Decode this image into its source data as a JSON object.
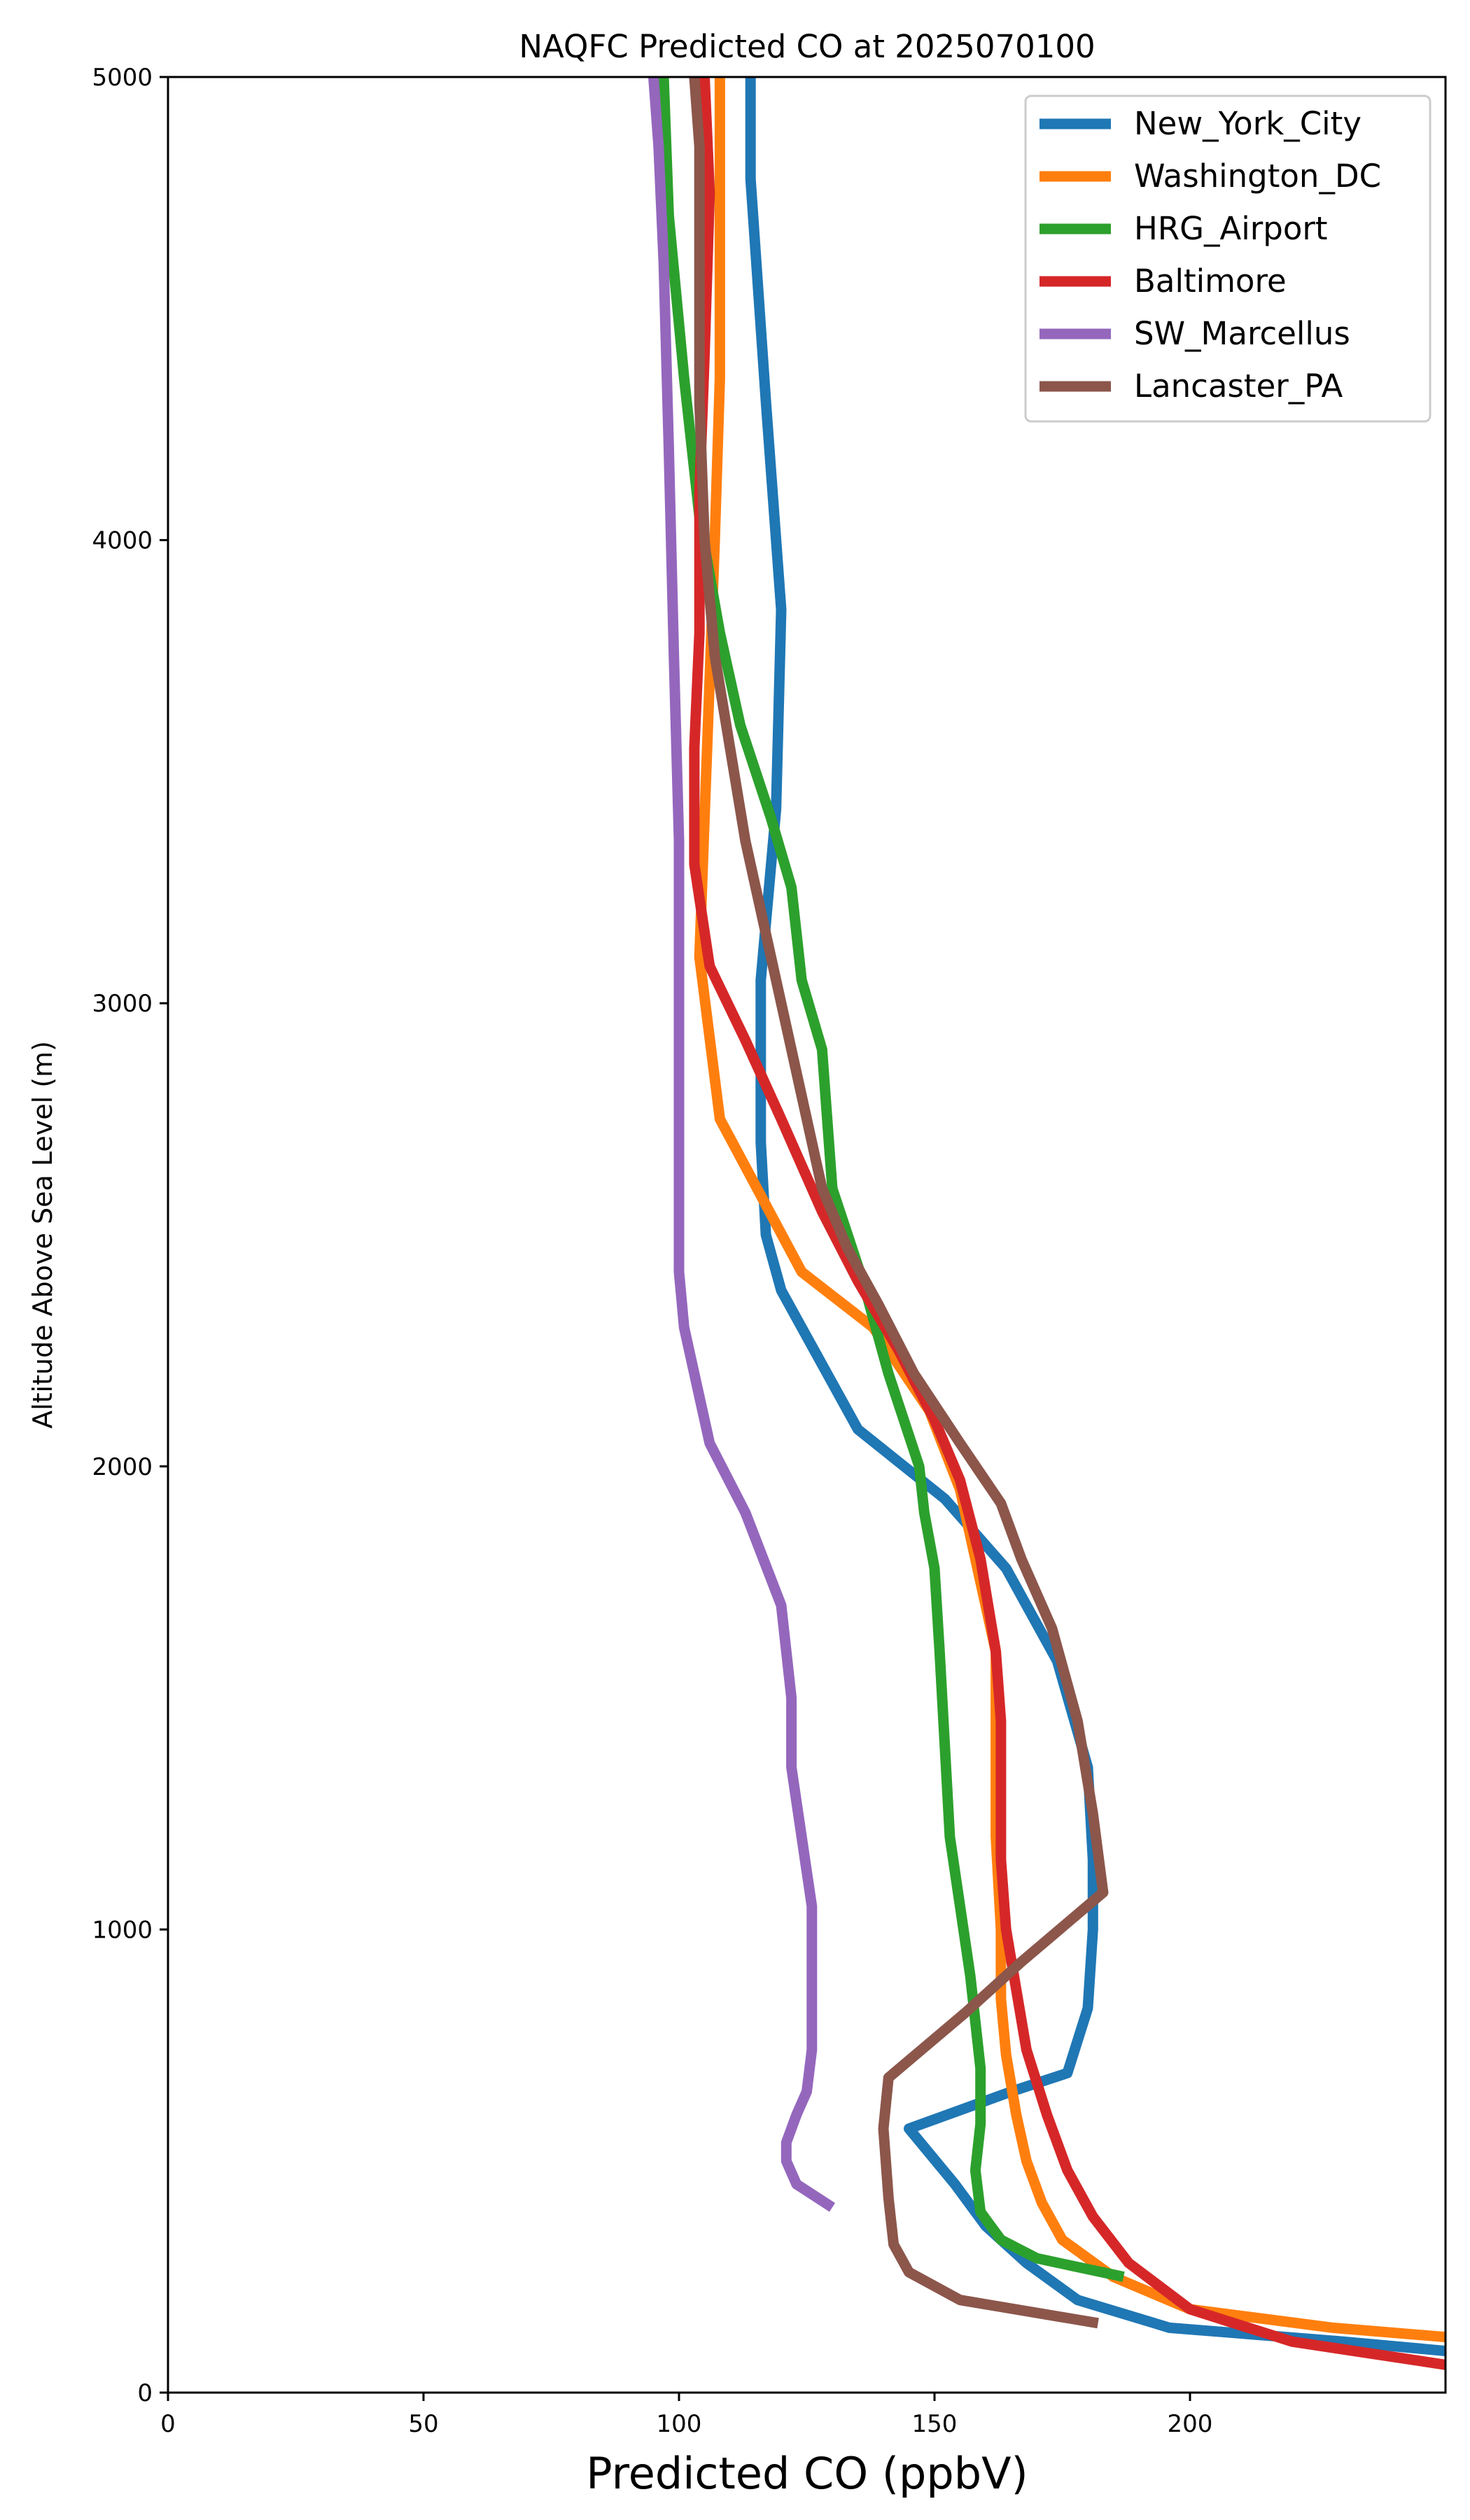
{
  "chart_data": {
    "type": "line",
    "title": "NAQFC Predicted CO at 2025070100",
    "xlabel": "Predicted CO (ppbV)",
    "ylabel": "Altitude Above Sea Level (m)",
    "xlim": [
      0,
      250
    ],
    "ylim": [
      0,
      5000
    ],
    "xticks": [
      0,
      50,
      100,
      150,
      200
    ],
    "yticks": [
      0,
      1000,
      2000,
      3000,
      4000,
      5000
    ],
    "grid": false,
    "legend_position": "top-right",
    "series": [
      {
        "name": "New_York_City",
        "color": "#1f77b4",
        "points": [
          [
            250,
            90
          ],
          [
            230,
            110
          ],
          [
            196,
            140
          ],
          [
            178,
            200
          ],
          [
            168,
            280
          ],
          [
            160,
            360
          ],
          [
            154,
            450
          ],
          [
            145,
            570
          ],
          [
            165,
            650
          ],
          [
            176,
            690
          ],
          [
            180,
            830
          ],
          [
            181,
            1000
          ],
          [
            181,
            1150
          ],
          [
            180,
            1350
          ],
          [
            174,
            1580
          ],
          [
            164,
            1780
          ],
          [
            152,
            1930
          ],
          [
            135,
            2080
          ],
          [
            120,
            2380
          ],
          [
            117,
            2500
          ],
          [
            116,
            2700
          ],
          [
            116,
            3050
          ],
          [
            119,
            3420
          ],
          [
            120,
            3850
          ],
          [
            117,
            4300
          ],
          [
            114,
            4780
          ],
          [
            114,
            5000
          ]
        ]
      },
      {
        "name": "Washington_DC",
        "color": "#ff7f0e",
        "points": [
          [
            250,
            120
          ],
          [
            228,
            140
          ],
          [
            200,
            180
          ],
          [
            185,
            250
          ],
          [
            175,
            330
          ],
          [
            171,
            410
          ],
          [
            168,
            500
          ],
          [
            166,
            600
          ],
          [
            164,
            730
          ],
          [
            163,
            850
          ],
          [
            163,
            1000
          ],
          [
            162,
            1200
          ],
          [
            162,
            1400
          ],
          [
            162,
            1600
          ],
          [
            159,
            1750
          ],
          [
            155,
            1950
          ],
          [
            149,
            2120
          ],
          [
            138,
            2300
          ],
          [
            124,
            2420
          ],
          [
            108,
            2750
          ],
          [
            104,
            3100
          ],
          [
            105,
            3400
          ],
          [
            106,
            3700
          ],
          [
            107,
            4000
          ],
          [
            108,
            4350
          ],
          [
            108,
            4700
          ],
          [
            108,
            5000
          ]
        ]
      },
      {
        "name": "HRG_Airport",
        "color": "#2ca02c",
        "points": [
          [
            187,
            250
          ],
          [
            170,
            290
          ],
          [
            163,
            330
          ],
          [
            159,
            390
          ],
          [
            158,
            480
          ],
          [
            159,
            580
          ],
          [
            159,
            700
          ],
          [
            157,
            900
          ],
          [
            155,
            1050
          ],
          [
            153,
            1200
          ],
          [
            152,
            1400
          ],
          [
            151,
            1600
          ],
          [
            150,
            1780
          ],
          [
            148,
            1900
          ],
          [
            147,
            2000
          ],
          [
            141,
            2200
          ],
          [
            136,
            2400
          ],
          [
            130,
            2600
          ],
          [
            129,
            2750
          ],
          [
            128,
            2900
          ],
          [
            124,
            3050
          ],
          [
            122,
            3250
          ],
          [
            118,
            3400
          ],
          [
            112,
            3600
          ],
          [
            108,
            3800
          ],
          [
            104,
            4050
          ],
          [
            101,
            4350
          ],
          [
            98,
            4700
          ],
          [
            97,
            5000
          ]
        ]
      },
      {
        "name": "Baltimore",
        "color": "#d62728",
        "points": [
          [
            250,
            60
          ],
          [
            220,
            110
          ],
          [
            200,
            180
          ],
          [
            188,
            280
          ],
          [
            181,
            380
          ],
          [
            176,
            480
          ],
          [
            172,
            600
          ],
          [
            168,
            740
          ],
          [
            166,
            870
          ],
          [
            164,
            1000
          ],
          [
            163,
            1150
          ],
          [
            163,
            1300
          ],
          [
            163,
            1450
          ],
          [
            162,
            1600
          ],
          [
            159,
            1800
          ],
          [
            155,
            1970
          ],
          [
            150,
            2100
          ],
          [
            143,
            2250
          ],
          [
            135,
            2400
          ],
          [
            128,
            2550
          ],
          [
            120,
            2750
          ],
          [
            113,
            2920
          ],
          [
            106,
            3080
          ],
          [
            103,
            3300
          ],
          [
            103,
            3550
          ],
          [
            104,
            3800
          ],
          [
            104,
            4100
          ],
          [
            105,
            4400
          ],
          [
            106,
            4750
          ],
          [
            105,
            5000
          ]
        ]
      },
      {
        "name": "SW_Marcellus",
        "color": "#9467bd",
        "points": [
          [
            130,
            400
          ],
          [
            123,
            450
          ],
          [
            121,
            500
          ],
          [
            121,
            540
          ],
          [
            123,
            600
          ],
          [
            125,
            650
          ],
          [
            126,
            740
          ],
          [
            126,
            850
          ],
          [
            126,
            950
          ],
          [
            126,
            1050
          ],
          [
            124,
            1200
          ],
          [
            122,
            1350
          ],
          [
            122,
            1500
          ],
          [
            120,
            1700
          ],
          [
            113,
            1900
          ],
          [
            106,
            2050
          ],
          [
            104,
            2150
          ],
          [
            101,
            2300
          ],
          [
            100,
            2420
          ],
          [
            100,
            2700
          ],
          [
            100,
            3000
          ],
          [
            100,
            3350
          ],
          [
            99,
            3750
          ],
          [
            98,
            4200
          ],
          [
            97,
            4600
          ],
          [
            96,
            4850
          ],
          [
            95,
            5000
          ]
        ]
      },
      {
        "name": "Lancaster_PA",
        "color": "#8c564b",
        "points": [
          [
            182,
            150
          ],
          [
            155,
            200
          ],
          [
            145,
            260
          ],
          [
            142,
            320
          ],
          [
            141,
            420
          ],
          [
            140,
            570
          ],
          [
            141,
            680
          ],
          [
            156,
            820
          ],
          [
            167,
            930
          ],
          [
            183,
            1080
          ],
          [
            181,
            1250
          ],
          [
            178,
            1450
          ],
          [
            173,
            1650
          ],
          [
            167,
            1800
          ],
          [
            163,
            1920
          ],
          [
            155,
            2050
          ],
          [
            146,
            2200
          ],
          [
            139,
            2350
          ],
          [
            133,
            2470
          ],
          [
            128,
            2600
          ],
          [
            124,
            2800
          ],
          [
            121,
            2950
          ],
          [
            117,
            3150
          ],
          [
            113,
            3350
          ],
          [
            110,
            3550
          ],
          [
            107,
            3750
          ],
          [
            105,
            4000
          ],
          [
            104,
            4300
          ],
          [
            104,
            4600
          ],
          [
            104,
            4850
          ],
          [
            103,
            5000
          ]
        ]
      }
    ]
  }
}
